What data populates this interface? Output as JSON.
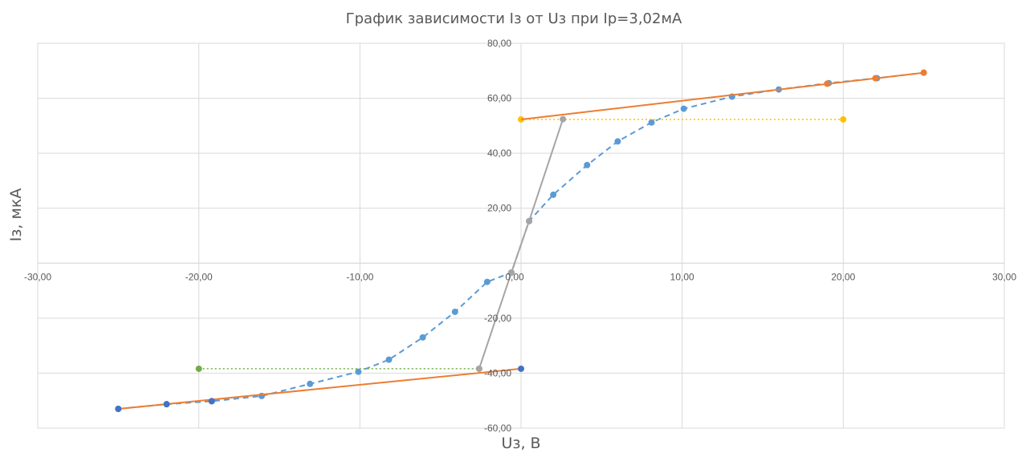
{
  "chart_data": {
    "type": "scatter",
    "title": "График зависимости Iз от Uз при Ip=3,02мА",
    "xlabel": "Uз, В",
    "ylabel": "Iз, мкА",
    "xlim": [
      -30,
      30
    ],
    "ylim": [
      -60,
      80
    ],
    "x_ticks": [
      -30,
      -20,
      -10,
      0,
      10,
      20,
      30
    ],
    "y_ticks": [
      -60,
      -40,
      -20,
      0,
      20,
      40,
      60,
      80
    ],
    "x_tick_labels": [
      "-30,00",
      "-20,00",
      "-10,00",
      "0,00",
      "10,00",
      "20,00",
      "30,00"
    ],
    "y_tick_labels": [
      "-60,00",
      "-40,00",
      "-20,00",
      "0,00",
      "20,00",
      "40,00",
      "60,00",
      "80,00"
    ],
    "grid": true,
    "legend": "none",
    "series": [
      {
        "style": "dashed-markers",
        "color": "#5b9bd5",
        "points": [
          [
            -25,
            -53
          ],
          [
            -22,
            -51.3
          ],
          [
            -19.2,
            -50.2
          ],
          [
            -16.1,
            -48.3
          ],
          [
            -13.1,
            -43.9
          ],
          [
            -10.1,
            -39.5
          ],
          [
            -8.2,
            -35.1
          ],
          [
            -6.1,
            -27
          ],
          [
            -4.1,
            -17.7
          ],
          [
            -2.1,
            -6.8
          ],
          [
            -0.6,
            -3.4
          ],
          [
            0.5,
            15.3
          ],
          [
            2,
            24.9
          ],
          [
            4.1,
            35.7
          ],
          [
            6,
            44.3
          ],
          [
            8.1,
            51.2
          ],
          [
            10.1,
            56.2
          ],
          [
            13.1,
            60.6
          ],
          [
            16,
            63.2
          ],
          [
            19.1,
            65.5
          ],
          [
            22.1,
            67.3
          ],
          [
            25,
            69.3
          ]
        ]
      },
      {
        "style": "solid",
        "color": "#ed7d31",
        "points": [
          [
            0,
            52.3
          ],
          [
            25,
            69.3
          ]
        ],
        "markers": [
          [
            19,
            65.3
          ],
          [
            22,
            67.3
          ],
          [
            25,
            69.3
          ]
        ]
      },
      {
        "style": "solid",
        "color": "#ed7d31",
        "points": [
          [
            -25,
            -53
          ],
          [
            0,
            -38.4
          ]
        ],
        "markers": []
      },
      {
        "style": "solid-markers",
        "color": "#a5a5a5",
        "points": [
          [
            -2.6,
            -38.4
          ],
          [
            -0.6,
            -3.4
          ],
          [
            0.5,
            15.3
          ],
          [
            2.6,
            52.4
          ]
        ]
      },
      {
        "style": "dotted",
        "color": "#ffc000",
        "points": [
          [
            0,
            52.3
          ],
          [
            20,
            52.3
          ]
        ]
      },
      {
        "style": "dotted",
        "color": "#70ad47",
        "points": [
          [
            -20,
            -38.4
          ],
          [
            -2.6,
            -38.4
          ]
        ]
      },
      {
        "style": "markers",
        "color": "#4472c4",
        "points": [
          [
            -25,
            -53
          ],
          [
            -22,
            -51.3
          ],
          [
            -19.2,
            -50.2
          ],
          [
            0,
            -38.4
          ]
        ]
      }
    ]
  }
}
